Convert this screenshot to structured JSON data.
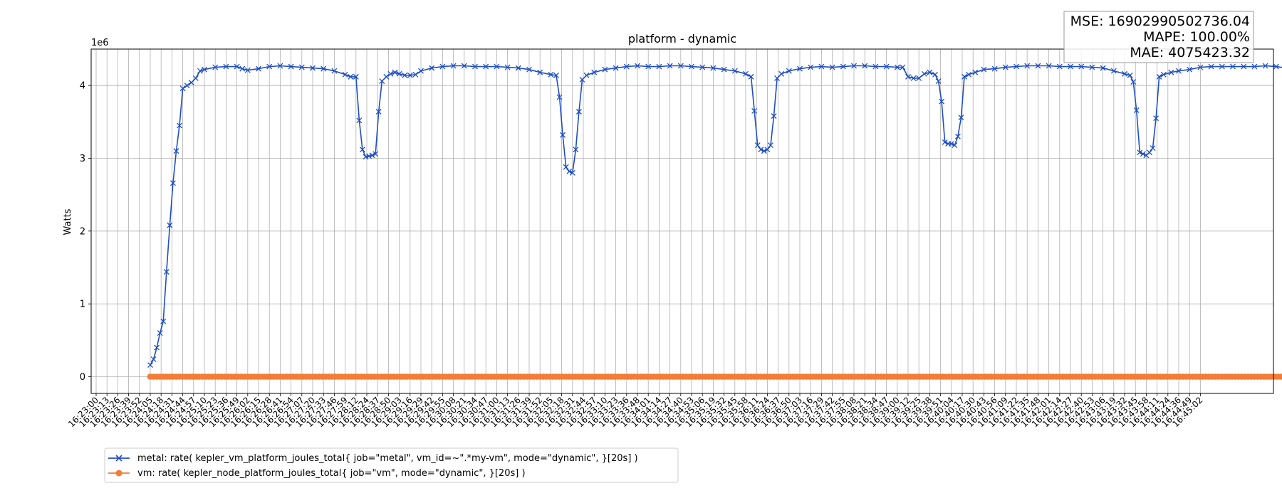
{
  "chart_data": {
    "type": "line",
    "title": "platform - dynamic",
    "xlabel": "",
    "ylabel": "Watts",
    "y_scale_label": "1e6",
    "y_scale": 1000000,
    "ylim": [
      -230000,
      4500000
    ],
    "yticks": [
      0,
      1,
      2,
      3,
      4
    ],
    "grid": true,
    "legend_position": "bottom-left",
    "stats": [
      "MSE: 16902990502736.04",
      "MAPE: 100.00%",
      "MAE: 4075423.32"
    ],
    "x_ticks": [
      "16:23:00",
      "16:23:13",
      "16:23:26",
      "16:23:39",
      "16:23:52",
      "16:24:05",
      "16:24:18",
      "16:24:31",
      "16:24:44",
      "16:24:57",
      "16:25:10",
      "16:25:23",
      "16:25:36",
      "16:25:49",
      "16:26:02",
      "16:26:15",
      "16:26:28",
      "16:26:41",
      "16:26:54",
      "16:27:07",
      "16:27:20",
      "16:27:33",
      "16:27:46",
      "16:27:59",
      "16:28:12",
      "16:28:24",
      "16:28:37",
      "16:28:50",
      "16:29:03",
      "16:29:16",
      "16:29:29",
      "16:29:42",
      "16:29:55",
      "16:30:08",
      "16:30:21",
      "16:30:34",
      "16:30:47",
      "16:31:00",
      "16:31:13",
      "16:31:26",
      "16:31:39",
      "16:31:52",
      "16:32:05",
      "16:32:18",
      "16:32:31",
      "16:32:44",
      "16:32:57",
      "16:33:10",
      "16:33:23",
      "16:33:36",
      "16:33:48",
      "16:34:01",
      "16:34:14",
      "16:34:27",
      "16:34:40",
      "16:34:53",
      "16:35:06",
      "16:35:19",
      "16:35:32",
      "16:35:45",
      "16:35:58",
      "16:36:11",
      "16:36:24",
      "16:36:37",
      "16:36:50",
      "16:37:03",
      "16:37:16",
      "16:37:29",
      "16:37:42",
      "16:37:55",
      "16:38:08",
      "16:38:21",
      "16:38:34",
      "16:38:47",
      "16:39:00",
      "16:39:12",
      "16:39:25",
      "16:39:38",
      "16:39:51",
      "16:40:04",
      "16:40:17",
      "16:40:30",
      "16:40:43",
      "16:40:56",
      "16:41:09",
      "16:41:22",
      "16:41:35",
      "16:41:48",
      "16:42:01",
      "16:42:14",
      "16:42:27",
      "16:42:40",
      "16:42:53",
      "16:43:06",
      "16:43:19",
      "16:43:32",
      "16:43:45",
      "16:43:58",
      "16:44:11",
      "16:44:24",
      "16:44:36",
      "16:44:49",
      "16:45:02"
    ],
    "series": [
      {
        "name": "metal: rate( kepler_vm_platform_joules_total{ job=\"metal\", vm_id=~\".*my-vm\", mode=\"dynamic\", }[20s] )",
        "color": "#1f4fc4",
        "marker": "x",
        "points": [
          [
            5,
            0.16
          ],
          [
            5.3,
            0.24
          ],
          [
            5.6,
            0.4
          ],
          [
            5.9,
            0.6
          ],
          [
            6.2,
            0.76
          ],
          [
            6.5,
            1.44
          ],
          [
            6.8,
            2.08
          ],
          [
            7.1,
            2.66
          ],
          [
            7.4,
            3.1
          ],
          [
            7.7,
            3.45
          ],
          [
            8.0,
            3.96
          ],
          [
            8.4,
            4.0
          ],
          [
            8.8,
            4.04
          ],
          [
            9.2,
            4.1
          ],
          [
            9.6,
            4.2
          ],
          [
            10,
            4.22
          ],
          [
            11,
            4.25
          ],
          [
            12,
            4.26
          ],
          [
            13,
            4.26
          ],
          [
            13.5,
            4.23
          ],
          [
            14,
            4.21
          ],
          [
            15,
            4.23
          ],
          [
            16,
            4.26
          ],
          [
            17,
            4.27
          ],
          [
            18,
            4.26
          ],
          [
            19,
            4.25
          ],
          [
            20,
            4.24
          ],
          [
            21,
            4.23
          ],
          [
            22,
            4.2
          ],
          [
            23,
            4.15
          ],
          [
            23.5,
            4.12
          ],
          [
            24,
            4.12
          ],
          [
            24.3,
            3.52
          ],
          [
            24.6,
            3.12
          ],
          [
            24.9,
            3.02
          ],
          [
            25.2,
            3.03
          ],
          [
            25.5,
            3.04
          ],
          [
            25.8,
            3.06
          ],
          [
            26.1,
            3.64
          ],
          [
            26.4,
            4.06
          ],
          [
            26.8,
            4.12
          ],
          [
            27.2,
            4.16
          ],
          [
            27.6,
            4.18
          ],
          [
            28,
            4.16
          ],
          [
            28.5,
            4.14
          ],
          [
            29,
            4.14
          ],
          [
            29.5,
            4.15
          ],
          [
            30,
            4.2
          ],
          [
            31,
            4.24
          ],
          [
            32,
            4.26
          ],
          [
            33,
            4.27
          ],
          [
            34,
            4.27
          ],
          [
            35,
            4.26
          ],
          [
            36,
            4.26
          ],
          [
            37,
            4.26
          ],
          [
            38,
            4.25
          ],
          [
            39,
            4.24
          ],
          [
            40,
            4.22
          ],
          [
            41,
            4.18
          ],
          [
            42,
            4.15
          ],
          [
            42.5,
            4.14
          ],
          [
            42.8,
            3.84
          ],
          [
            43.1,
            3.32
          ],
          [
            43.4,
            2.88
          ],
          [
            43.7,
            2.82
          ],
          [
            44,
            2.8
          ],
          [
            44.3,
            3.12
          ],
          [
            44.6,
            3.64
          ],
          [
            44.9,
            4.08
          ],
          [
            45.3,
            4.14
          ],
          [
            46,
            4.18
          ],
          [
            47,
            4.22
          ],
          [
            48,
            4.24
          ],
          [
            49,
            4.26
          ],
          [
            50,
            4.27
          ],
          [
            51,
            4.26
          ],
          [
            52,
            4.26
          ],
          [
            53,
            4.27
          ],
          [
            54,
            4.27
          ],
          [
            55,
            4.26
          ],
          [
            56,
            4.25
          ],
          [
            57,
            4.24
          ],
          [
            58,
            4.22
          ],
          [
            59,
            4.2
          ],
          [
            60,
            4.16
          ],
          [
            60.5,
            4.12
          ],
          [
            60.8,
            3.65
          ],
          [
            61.1,
            3.18
          ],
          [
            61.4,
            3.12
          ],
          [
            61.7,
            3.1
          ],
          [
            62,
            3.12
          ],
          [
            62.3,
            3.18
          ],
          [
            62.6,
            3.58
          ],
          [
            62.9,
            4.1
          ],
          [
            63.3,
            4.16
          ],
          [
            64,
            4.2
          ],
          [
            65,
            4.23
          ],
          [
            66,
            4.25
          ],
          [
            67,
            4.26
          ],
          [
            68,
            4.25
          ],
          [
            69,
            4.26
          ],
          [
            70,
            4.27
          ],
          [
            71,
            4.27
          ],
          [
            72,
            4.26
          ],
          [
            73,
            4.26
          ],
          [
            74,
            4.25
          ],
          [
            74.5,
            4.25
          ],
          [
            75,
            4.12
          ],
          [
            75.5,
            4.1
          ],
          [
            76,
            4.1
          ],
          [
            76.5,
            4.16
          ],
          [
            77,
            4.18
          ],
          [
            77.5,
            4.15
          ],
          [
            77.8,
            4.06
          ],
          [
            78.1,
            3.78
          ],
          [
            78.4,
            3.22
          ],
          [
            78.7,
            3.2
          ],
          [
            79,
            3.2
          ],
          [
            79.3,
            3.18
          ],
          [
            79.6,
            3.3
          ],
          [
            79.9,
            3.56
          ],
          [
            80.2,
            4.12
          ],
          [
            80.6,
            4.15
          ],
          [
            81.2,
            4.18
          ],
          [
            82,
            4.22
          ],
          [
            83,
            4.23
          ],
          [
            84,
            4.25
          ],
          [
            85,
            4.26
          ],
          [
            86,
            4.27
          ],
          [
            87,
            4.27
          ],
          [
            88,
            4.27
          ],
          [
            89,
            4.26
          ],
          [
            90,
            4.26
          ],
          [
            91,
            4.26
          ],
          [
            92,
            4.25
          ],
          [
            93,
            4.24
          ],
          [
            94,
            4.2
          ],
          [
            95,
            4.16
          ],
          [
            95.5,
            4.14
          ],
          [
            95.8,
            4.05
          ],
          [
            96.1,
            3.66
          ],
          [
            96.4,
            3.08
          ],
          [
            96.7,
            3.06
          ],
          [
            97,
            3.04
          ],
          [
            97.3,
            3.08
          ],
          [
            97.6,
            3.14
          ],
          [
            97.9,
            3.55
          ],
          [
            98.2,
            4.12
          ],
          [
            98.6,
            4.15
          ],
          [
            99.3,
            4.18
          ],
          [
            100,
            4.2
          ],
          [
            101,
            4.22
          ],
          [
            102,
            4.25
          ],
          [
            103,
            4.26
          ],
          [
            104,
            4.26
          ],
          [
            105,
            4.26
          ],
          [
            106,
            4.26
          ],
          [
            107,
            4.26
          ],
          [
            108,
            4.27
          ],
          [
            109,
            4.26
          ],
          [
            110,
            4.24
          ],
          [
            111,
            4.22
          ],
          [
            112,
            4.2
          ],
          [
            112.5,
            4.18
          ],
          [
            113,
            4.14
          ],
          [
            113.4,
            4.08
          ],
          [
            113.7,
            4.04
          ]
        ]
      },
      {
        "name": "vm: rate( kepler_node_platform_joules_total{ job=\"vm\", mode=\"dynamic\", }[20s] )",
        "color": "#f47c35",
        "marker": "o",
        "points": [
          [
            5,
            0
          ],
          [
            113.7,
            0
          ]
        ]
      }
    ]
  }
}
